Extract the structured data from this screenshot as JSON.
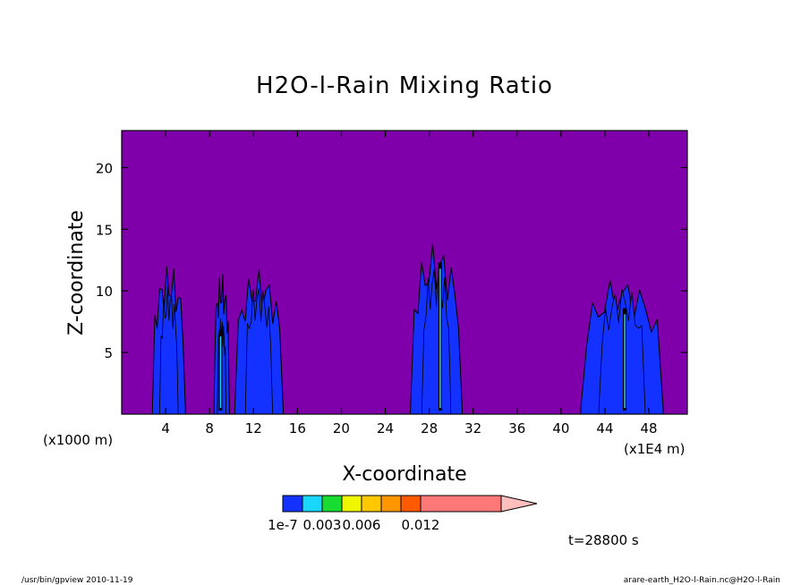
{
  "chart_data": {
    "type": "heatmap",
    "title": "H2O-l-Rain Mixing Ratio",
    "xlabel": "X-coordinate",
    "ylabel": "Z-coordinate",
    "x_units_left": "(x1000 m)",
    "x_units_right": "(x1E4 m)",
    "xlim": [
      0,
      51.5
    ],
    "ylim": [
      0,
      23
    ],
    "x_ticks": [
      4,
      8,
      12,
      16,
      20,
      24,
      28,
      32,
      36,
      40,
      44,
      48
    ],
    "x_tick_labels": [
      "4",
      "8",
      "12",
      "16",
      "20",
      "24",
      "28",
      "32",
      "36",
      "40",
      "44",
      "48"
    ],
    "y_ticks": [
      5,
      10,
      15,
      20
    ],
    "y_tick_labels": [
      "5",
      "10",
      "15",
      "20"
    ],
    "background_color": "#7f00aa",
    "colorbar": {
      "levels": [
        1e-07,
        0.0015,
        0.003,
        0.0045,
        0.006,
        0.0075,
        0.009,
        0.012
      ],
      "labels": [
        "1e-7",
        "0.003",
        "0.006",
        "0.012"
      ],
      "colors": [
        "#1432ff",
        "#19d7ff",
        "#19dc32",
        "#f0f500",
        "#ffc800",
        "#ff9600",
        "#ff5a00",
        "#ff1e1e",
        "#ff7878",
        "#ffbebe"
      ]
    },
    "cells": [
      {
        "x": [
          2.8,
          5.8
        ],
        "ztop": 12.2,
        "core_top": 10.5
      },
      {
        "x": [
          8.4,
          9.8
        ],
        "ztop": 11.5,
        "core_top": 8.0,
        "trace_x": 9.0,
        "trace_top": 6.8
      },
      {
        "x": [
          10.3,
          14.7
        ],
        "ztop": 11.8,
        "core_top": 10.8
      },
      {
        "x": [
          26.3,
          31.0
        ],
        "ztop": 14.0,
        "core_top": 12.5,
        "trace_x": 29.0,
        "trace_top": 12.3
      },
      {
        "x": [
          41.8,
          49.3
        ],
        "ztop": 11.2,
        "core_top": 10.6,
        "trace_x": 45.8,
        "trace_top": 8.6
      }
    ]
  },
  "time_label": "t=28800 s",
  "footer": {
    "left": "/usr/bin/gpview   2010-11-19",
    "right": "arare-earth_H2O-l-Rain.nc@H2O-l-Rain"
  }
}
